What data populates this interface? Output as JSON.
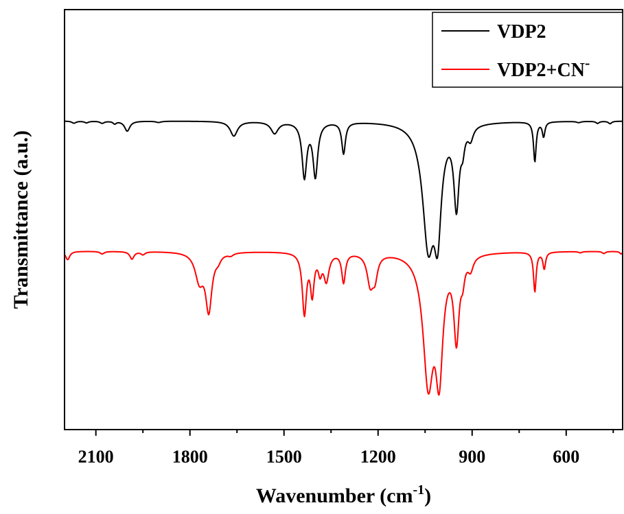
{
  "chart_data": {
    "type": "line",
    "xlabel": "Wavenumber (cm",
    "xlabel_sup": "-1",
    "xlabel_tail": ")",
    "ylabel": "Transmittance (a.u.)",
    "xlim": [
      2200,
      420
    ],
    "x_reversed": true,
    "y_ticks_shown": false,
    "x_ticks": [
      2100,
      1800,
      1500,
      1200,
      900,
      600
    ],
    "x_tick_labels": [
      "2100",
      "1800",
      "1500",
      "1200",
      "900",
      "600"
    ],
    "ylim": [
      0,
      100
    ],
    "legend": {
      "placement": "top-right",
      "entries": [
        {
          "label": "VDP2",
          "label_sup": "",
          "color": "#000000"
        },
        {
          "label": "VDP2+CN",
          "label_sup": "-",
          "color": "#ff0000"
        }
      ]
    },
    "series": [
      {
        "name": "VDP2",
        "color": "#000000",
        "baseline": 73.5,
        "peaks": [
          [
            2170,
            0.5,
            8
          ],
          [
            2130,
            0.4,
            8
          ],
          [
            2080,
            0.5,
            8
          ],
          [
            2040,
            0.6,
            6
          ],
          [
            2000,
            2.4,
            10
          ],
          [
            1900,
            0.3,
            10
          ],
          [
            1660,
            3.5,
            14
          ],
          [
            1530,
            2.8,
            14
          ],
          [
            1435,
            13.0,
            9
          ],
          [
            1400,
            12.8,
            9
          ],
          [
            1310,
            7.5,
            7
          ],
          [
            1040,
            28.0,
            22
          ],
          [
            1010,
            22.0,
            14
          ],
          [
            950,
            19.0,
            10
          ],
          [
            930,
            4.0,
            7
          ],
          [
            905,
            3.0,
            10
          ],
          [
            700,
            9.5,
            5
          ],
          [
            672,
            3.5,
            5
          ],
          [
            560,
            0.3,
            8
          ],
          [
            500,
            0.5,
            6
          ],
          [
            460,
            0.6,
            6
          ]
        ]
      },
      {
        "name": "VDP2+CN",
        "color": "#ff0000",
        "baseline": 42.5,
        "peaks": [
          [
            2190,
            2.0,
            8
          ],
          [
            2080,
            0.6,
            8
          ],
          [
            1985,
            1.8,
            8
          ],
          [
            1950,
            0.7,
            8
          ],
          [
            1770,
            6.5,
            16
          ],
          [
            1740,
            13.5,
            12
          ],
          [
            1710,
            1.3,
            10
          ],
          [
            1670,
            0.6,
            10
          ],
          [
            1435,
            14.5,
            8
          ],
          [
            1410,
            9.5,
            7
          ],
          [
            1385,
            4.0,
            7
          ],
          [
            1365,
            6.5,
            10
          ],
          [
            1310,
            7.0,
            7
          ],
          [
            1225,
            7.0,
            12
          ],
          [
            1210,
            5.0,
            10
          ],
          [
            1040,
            30.0,
            20
          ],
          [
            1005,
            26.0,
            14
          ],
          [
            950,
            19.5,
            10
          ],
          [
            930,
            4.0,
            7
          ],
          [
            905,
            3.0,
            10
          ],
          [
            700,
            9.5,
            5
          ],
          [
            670,
            4.0,
            5
          ],
          [
            555,
            0.3,
            6
          ],
          [
            480,
            0.5,
            6
          ],
          [
            425,
            0.6,
            5
          ]
        ]
      }
    ]
  }
}
